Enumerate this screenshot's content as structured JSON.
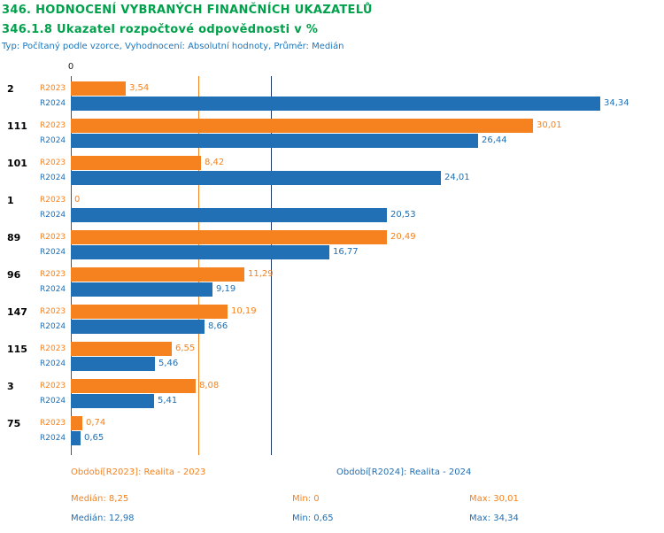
{
  "header": {
    "title": "346. HODNOCENÍ VYBRANÝCH FINANČNÍCH UKAZATELŮ",
    "subtitle": "346.1.8 Ukazatel rozpočtové odpovědnosti v %",
    "meta": "Typ: Počítaný podle vzorce, Vyhodnocení: Absolutní hodnoty, Průměr: Medián",
    "title_color": "#00A14B",
    "meta_color": "#1B75BB"
  },
  "chart_data": {
    "type": "bar",
    "orientation": "horizontal",
    "title": "346.1.8 Ukazatel rozpočtové odpovědnosti v %",
    "xlim": [
      0,
      34.34
    ],
    "x_tick": "0",
    "grid": "vertical-axis-and-median-lines",
    "categories": [
      "2",
      "111",
      "101",
      "1",
      "89",
      "96",
      "147",
      "115",
      "3",
      "75"
    ],
    "series": [
      {
        "name": "R2023",
        "color": "#F5821F",
        "values": [
          3.54,
          30.01,
          8.42,
          0,
          20.49,
          11.29,
          10.19,
          6.55,
          8.08,
          0.74
        ],
        "labels": [
          "3,54",
          "30,01",
          "8,42",
          "0",
          "20,49",
          "11,29",
          "10,19",
          "6,55",
          "8,08",
          "0,74"
        ]
      },
      {
        "name": "R2024",
        "color": "#2170B5",
        "values": [
          34.34,
          26.44,
          24.01,
          20.53,
          16.77,
          9.19,
          8.66,
          5.46,
          5.41,
          0.65
        ],
        "labels": [
          "34,34",
          "26,44",
          "24,01",
          "20,53",
          "16,77",
          "9,19",
          "8,66",
          "5,46",
          "5,41",
          "0,65"
        ]
      }
    ],
    "median_lines": [
      {
        "series": "R2023",
        "value": 8.25,
        "color": "#F5821F"
      },
      {
        "series": "R2024",
        "value": 12.98,
        "color": "#1F3864"
      }
    ],
    "axis_color": "#555555"
  },
  "footer": {
    "period_2023": "Období[R2023]: Realita - 2023",
    "period_2024": "Období[R2024]: Realita - 2024",
    "stats_2023": {
      "median": "Medián: 8,25",
      "min": "Min: 0",
      "max": "Max: 30,01"
    },
    "stats_2024": {
      "median": "Medián: 12,98",
      "min": "Min: 0,65",
      "max": "Max: 34,34"
    }
  }
}
